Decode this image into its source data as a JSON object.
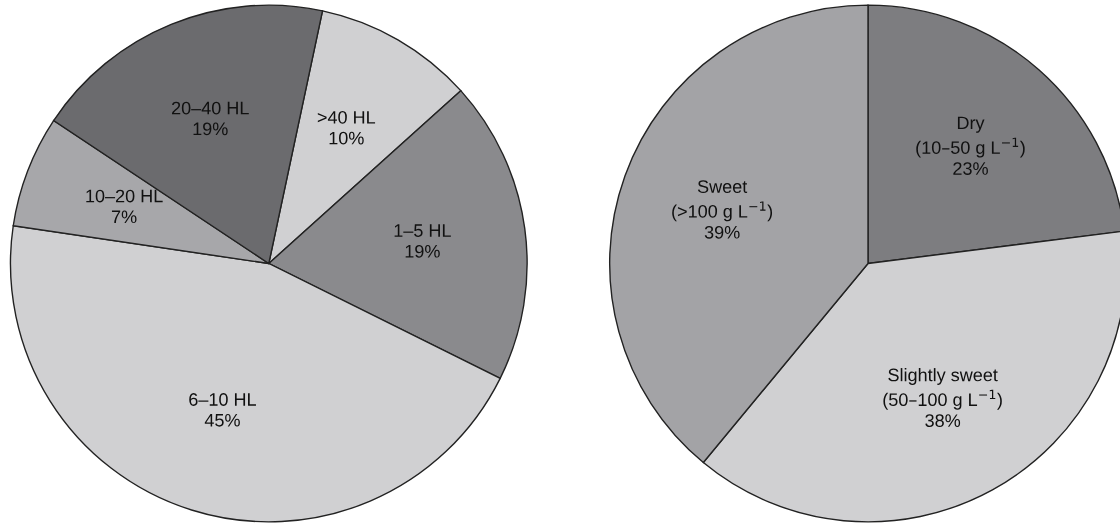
{
  "chart_data": [
    {
      "type": "pie",
      "categories": [
        ">40 HL",
        "1–5 HL",
        "6–10 HL",
        "10–20 HL",
        "20–40 HL"
      ],
      "values": [
        10,
        19,
        45,
        7,
        19
      ],
      "value_labels": [
        "10%",
        "19%",
        "45%",
        "7%",
        "19%"
      ],
      "colors": [
        "#d0d0d2",
        "#8a8a8d",
        "#d0d0d2",
        "#a7a7aa",
        "#6b6b6e"
      ]
    },
    {
      "type": "pie",
      "categories": [
        "Dry\n(10–50 g L$^{−1}$)",
        "Slightly sweet\n(50–100 g L$^{−1}$)",
        "Sweet\n(>100 g L$^{−1}$)"
      ],
      "values": [
        23,
        38,
        39
      ],
      "value_labels": [
        "23%",
        "38%",
        "39%"
      ],
      "colors": [
        "#7d7d80",
        "#d0d0d2",
        "#a3a3a6"
      ]
    }
  ]
}
